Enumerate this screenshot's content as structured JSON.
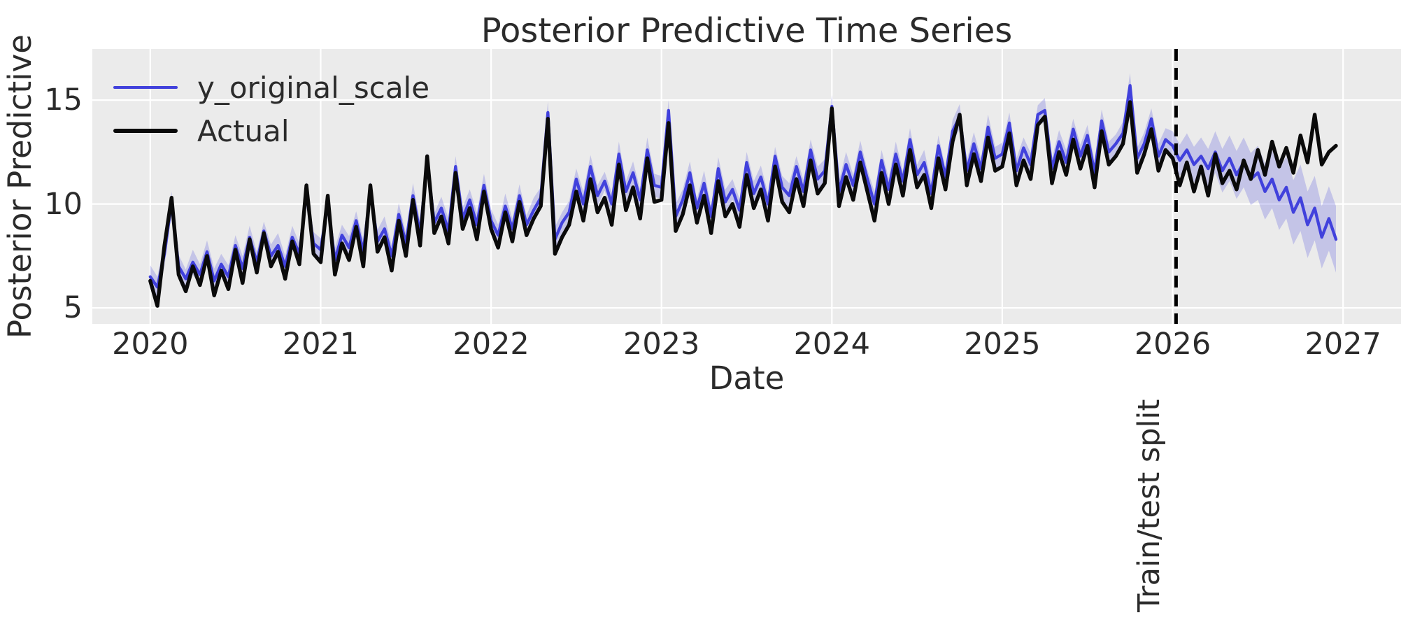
{
  "figure": {
    "title": "Posterior Predictive Time Series",
    "xlabel": "Date",
    "ylabel": "Posterior Predictive"
  },
  "legend": {
    "position": "upper left",
    "items": [
      {
        "label": "y_original_scale",
        "color": "#4141dc",
        "line_width": 4.5
      },
      {
        "label": "Actual",
        "color": "#0a0a0a",
        "line_width": 6
      }
    ]
  },
  "annotation": {
    "label": "Train/test split",
    "x": 2026.02
  },
  "axes": {
    "x_ticks": [
      2020,
      2021,
      2022,
      2023,
      2024,
      2025,
      2026,
      2027
    ],
    "y_ticks": [
      5,
      10,
      15
    ],
    "x_range": [
      2019.66,
      2027.34
    ],
    "y_range": [
      4.23,
      17.46
    ],
    "grid": true,
    "panel_color": "#ebebeb",
    "grid_color": "#ffffff",
    "text_color": "#262626"
  },
  "chart_data": {
    "type": "line",
    "title": "Posterior Predictive Time Series",
    "xlabel": "Date",
    "ylabel": "Posterior Predictive",
    "x_start": 2020.0,
    "x_step": 0.0416667,
    "n_points": 168,
    "x_unit": "decimal year, semimonthly samples 2020.0 - 2026.96",
    "series": [
      {
        "name": "y_original_scale",
        "color": "#4141dc",
        "line_width": 4.3,
        "values": [
          6.5,
          6.0,
          7.6,
          10.1,
          7.0,
          6.4,
          7.2,
          6.6,
          7.7,
          6.3,
          7.1,
          6.5,
          8.0,
          6.9,
          8.4,
          7.2,
          8.7,
          7.5,
          8.0,
          7.0,
          8.4,
          7.6,
          10.5,
          8.1,
          7.8,
          10.0,
          7.3,
          8.5,
          7.9,
          9.2,
          7.7,
          10.6,
          8.2,
          8.8,
          7.5,
          9.5,
          8.1,
          10.4,
          8.6,
          12.0,
          9.1,
          9.8,
          8.7,
          11.8,
          9.3,
          10.2,
          9.0,
          10.9,
          9.2,
          8.5,
          9.9,
          8.8,
          10.4,
          9.0,
          9.7,
          10.3,
          14.4,
          8.3,
          9.1,
          9.6,
          11.2,
          10.0,
          11.8,
          10.4,
          11.1,
          10.0,
          12.4,
          10.6,
          11.5,
          10.2,
          12.6,
          10.9,
          10.8,
          14.5,
          9.4,
          10.2,
          11.5,
          9.8,
          11.0,
          9.4,
          11.7,
          10.1,
          10.7,
          9.7,
          12.0,
          10.5,
          11.3,
          10.0,
          12.3,
          10.8,
          10.4,
          11.8,
          10.6,
          12.6,
          11.2,
          11.6,
          14.7,
          10.6,
          11.9,
          10.9,
          12.5,
          11.2,
          10.0,
          12.1,
          10.7,
          12.4,
          11.1,
          13.1,
          11.4,
          12.0,
          10.5,
          12.8,
          11.3,
          13.5,
          14.2,
          11.6,
          12.9,
          11.7,
          13.7,
          12.2,
          12.4,
          13.9,
          11.6,
          12.7,
          11.9,
          14.3,
          14.5,
          11.7,
          13.0,
          12.0,
          13.6,
          12.3,
          13.3,
          11.5,
          14.0,
          12.5,
          12.9,
          13.4,
          15.7,
          12.2,
          12.9,
          14.1,
          12.3,
          13.1,
          12.8,
          12.1,
          12.6,
          11.9,
          12.3,
          11.7,
          12.5,
          11.6,
          12.2,
          11.4,
          12.0,
          11.2,
          11.5,
          10.6,
          11.2,
          10.2,
          10.8,
          9.6,
          10.3,
          9.0,
          9.8,
          8.4,
          9.3,
          8.3
        ]
      },
      {
        "name": "Actual",
        "color": "#0a0a0a",
        "line_width": 5.4,
        "values": [
          6.3,
          5.1,
          8.0,
          10.3,
          6.6,
          5.8,
          7.0,
          6.1,
          7.5,
          5.6,
          6.8,
          5.9,
          7.8,
          6.2,
          8.3,
          6.7,
          8.6,
          7.0,
          7.7,
          6.4,
          8.2,
          7.1,
          10.9,
          7.6,
          7.2,
          10.4,
          6.6,
          8.1,
          7.3,
          8.9,
          7.0,
          10.9,
          7.7,
          8.4,
          6.8,
          9.2,
          7.5,
          10.2,
          8.0,
          12.3,
          8.6,
          9.4,
          8.1,
          11.5,
          8.8,
          9.8,
          8.3,
          10.6,
          8.8,
          7.9,
          9.6,
          8.2,
          10.1,
          8.5,
          9.3,
          9.9,
          14.1,
          7.6,
          8.4,
          9.0,
          10.6,
          9.2,
          11.2,
          9.6,
          10.3,
          9.0,
          11.9,
          9.7,
          10.8,
          9.3,
          12.2,
          10.1,
          10.2,
          13.9,
          8.7,
          9.5,
          10.9,
          9.1,
          10.4,
          8.6,
          11.1,
          9.4,
          10.0,
          8.9,
          11.4,
          9.8,
          10.7,
          9.2,
          11.8,
          10.1,
          9.6,
          11.2,
          9.9,
          12.1,
          10.5,
          11.0,
          14.6,
          9.9,
          11.3,
          10.2,
          12.0,
          10.6,
          9.2,
          11.5,
          10.0,
          11.9,
          10.4,
          12.6,
          10.8,
          11.4,
          9.8,
          12.2,
          10.7,
          13.0,
          14.3,
          10.9,
          12.4,
          11.1,
          13.2,
          11.6,
          11.8,
          13.4,
          10.9,
          12.1,
          11.2,
          13.8,
          14.2,
          11.0,
          12.5,
          11.4,
          13.1,
          11.7,
          12.8,
          10.8,
          13.5,
          11.9,
          12.3,
          12.9,
          14.9,
          11.5,
          12.4,
          13.6,
          11.6,
          12.6,
          12.2,
          10.9,
          12.0,
          10.6,
          11.8,
          10.4,
          12.4,
          11.0,
          11.6,
          10.7,
          12.1,
          11.2,
          12.6,
          11.4,
          13.0,
          11.8,
          12.7,
          11.5,
          13.3,
          12.0,
          14.3,
          11.9,
          12.5,
          12.8
        ]
      }
    ],
    "uncertainty_band": {
      "around": "y_original_scale",
      "fill": "rgba(80,80,220,0.25)",
      "halfwidth": [
        0.55,
        0.5,
        0.6,
        0.5,
        0.55,
        0.45,
        0.6,
        0.5,
        0.55,
        0.6,
        0.5,
        0.55,
        0.5,
        0.6,
        0.55,
        0.5,
        0.45,
        0.55,
        0.6,
        0.5,
        0.55,
        0.5,
        0.6,
        0.55,
        0.55,
        0.5,
        0.6,
        0.5,
        0.55,
        0.45,
        0.6,
        0.5,
        0.55,
        0.6,
        0.5,
        0.55,
        0.5,
        0.6,
        0.55,
        0.5,
        0.45,
        0.55,
        0.6,
        0.5,
        0.55,
        0.5,
        0.6,
        0.55,
        0.55,
        0.5,
        0.6,
        0.5,
        0.55,
        0.45,
        0.6,
        0.5,
        0.55,
        0.6,
        0.5,
        0.55,
        0.5,
        0.6,
        0.55,
        0.5,
        0.45,
        0.55,
        0.6,
        0.5,
        0.55,
        0.5,
        0.6,
        0.55,
        0.55,
        0.5,
        0.6,
        0.5,
        0.55,
        0.45,
        0.6,
        0.5,
        0.55,
        0.6,
        0.5,
        0.55,
        0.5,
        0.6,
        0.55,
        0.5,
        0.45,
        0.55,
        0.6,
        0.5,
        0.55,
        0.5,
        0.6,
        0.55,
        0.55,
        0.5,
        0.6,
        0.5,
        0.55,
        0.45,
        0.6,
        0.5,
        0.55,
        0.6,
        0.5,
        0.55,
        0.5,
        0.6,
        0.55,
        0.5,
        0.45,
        0.55,
        0.6,
        0.5,
        0.55,
        0.5,
        0.6,
        0.55,
        0.55,
        0.5,
        0.6,
        0.5,
        0.55,
        0.45,
        0.6,
        0.5,
        0.55,
        0.6,
        0.5,
        0.55,
        0.5,
        0.6,
        0.55,
        0.5,
        0.45,
        0.55,
        0.6,
        0.5,
        0.55,
        0.5,
        0.6,
        0.55,
        0.7,
        0.75,
        0.8,
        0.85,
        0.9,
        0.95,
        1.0,
        1.05,
        1.1,
        1.15,
        1.2,
        1.25,
        1.3,
        1.35,
        1.4,
        1.45,
        1.5,
        1.55,
        1.6,
        1.6,
        1.55,
        1.5,
        1.55,
        1.6
      ]
    },
    "vline": {
      "x": 2026.02,
      "style": "dashed",
      "color": "#000000",
      "label": "Train/test split"
    },
    "legend_position": "upper left"
  }
}
